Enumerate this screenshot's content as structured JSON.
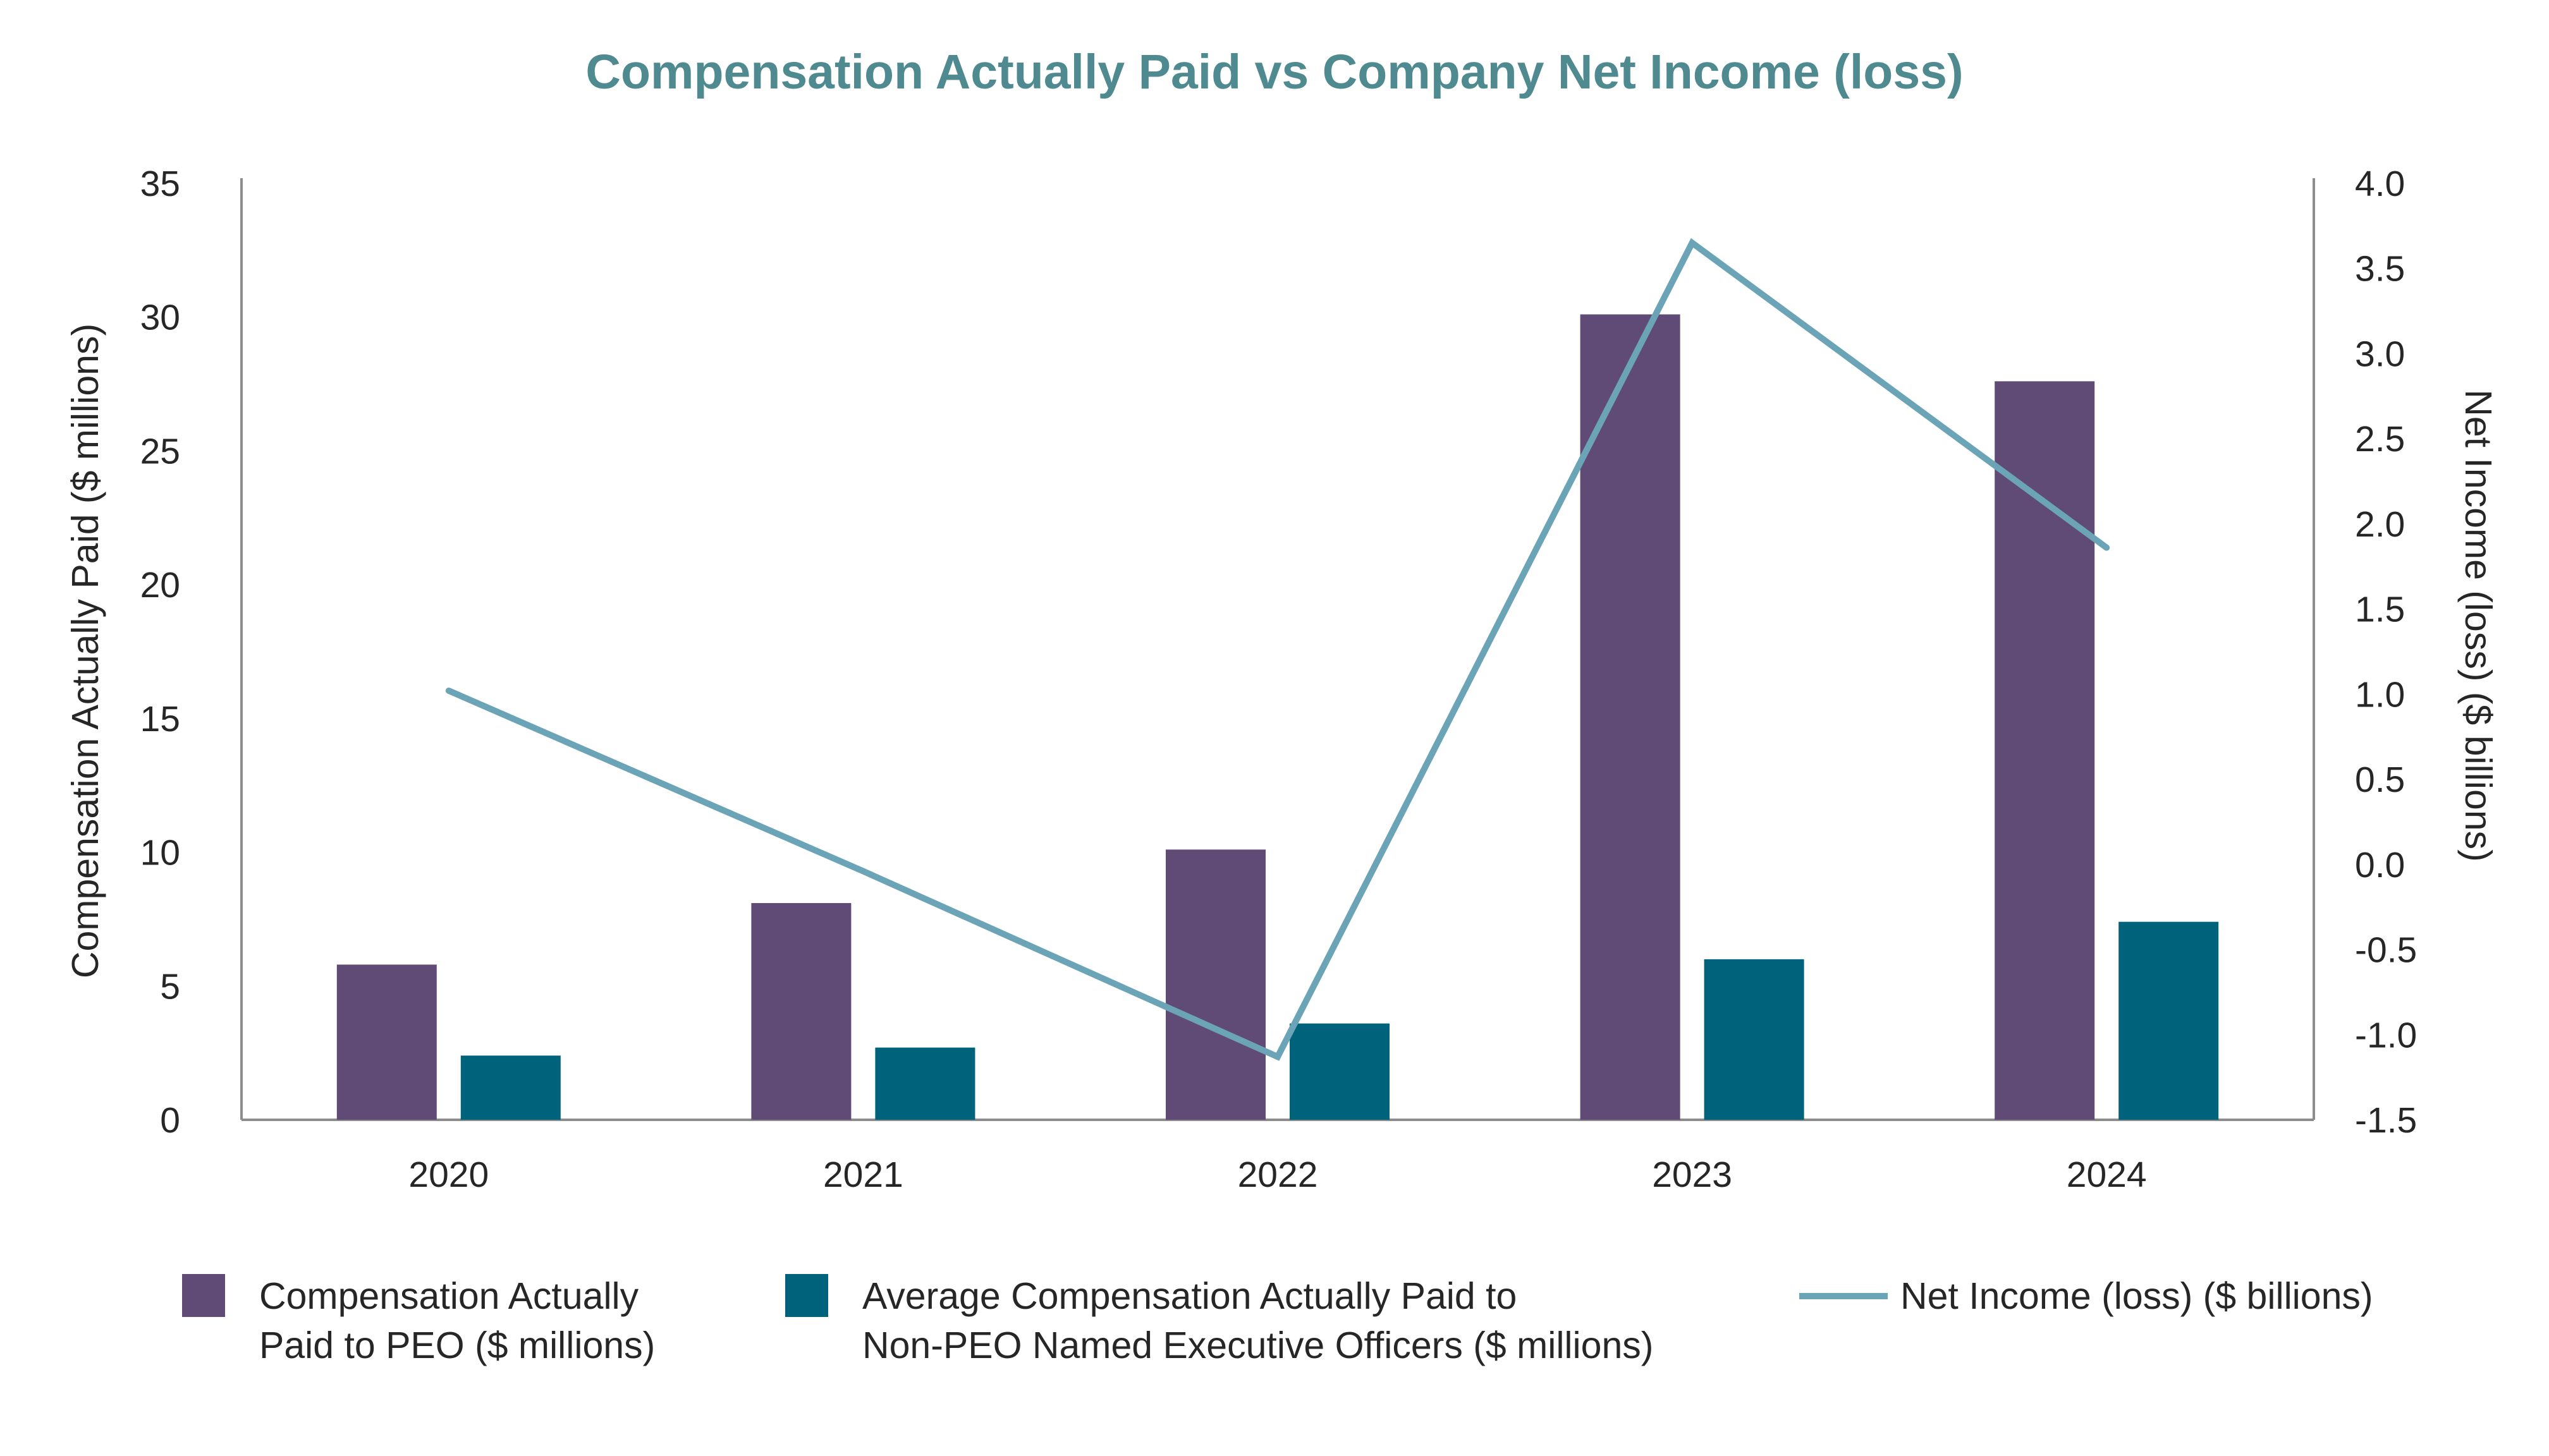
{
  "chart_data": {
    "type": "bar",
    "title": "Compensation Actually Paid vs Company Net Income (loss)",
    "categories": [
      "2020",
      "2021",
      "2022",
      "2023",
      "2024"
    ],
    "ylabel": "Compensation Actually Paid ($ millions)",
    "ylim": [
      0,
      35
    ],
    "yticks": [
      "0",
      "5",
      "10",
      "15",
      "20",
      "25",
      "30",
      "35"
    ],
    "y2label": "Net Income (loss) ($ billions)",
    "y2lim": [
      -1.5,
      4.0
    ],
    "y2ticks": [
      "-1.5",
      "-1.0",
      "-0.5",
      "0.0",
      "0.5",
      "1.0",
      "1.5",
      "2.0",
      "2.5",
      "3.0",
      "3.5",
      "4.0"
    ],
    "series": [
      {
        "name": "Compensation Actually Paid to PEO ($ millions)",
        "type": "bar",
        "axis": "left",
        "color": "#604a76",
        "values": [
          5.8,
          8.1,
          10.1,
          30.1,
          27.6
        ]
      },
      {
        "name": "Average Compensation Actually Paid to Non-PEO Named Executive Officers ($ millions)",
        "type": "bar",
        "axis": "left",
        "color": "#00627b",
        "values": [
          2.4,
          2.7,
          3.6,
          6.0,
          7.4
        ]
      },
      {
        "name": "Net Income (loss) ($ billions)",
        "type": "line",
        "axis": "right",
        "color": "#6aa4b6",
        "values": [
          1.02,
          -0.04,
          -1.13,
          3.65,
          1.86
        ]
      }
    ],
    "grid": false,
    "legend_position": "bottom",
    "title_color": "#4e8a8f"
  },
  "legend": [
    {
      "label": "Compensation Actually\nPaid to PEO ($ millions)",
      "kind": "box",
      "color": "#604a76"
    },
    {
      "label": "Average Compensation Actually Paid to\nNon-PEO Named Executive Officers ($ millions)",
      "kind": "box",
      "color": "#00627b"
    },
    {
      "label": "Net Income (loss) ($ billions)",
      "kind": "line",
      "color": "#6aa4b6"
    }
  ]
}
